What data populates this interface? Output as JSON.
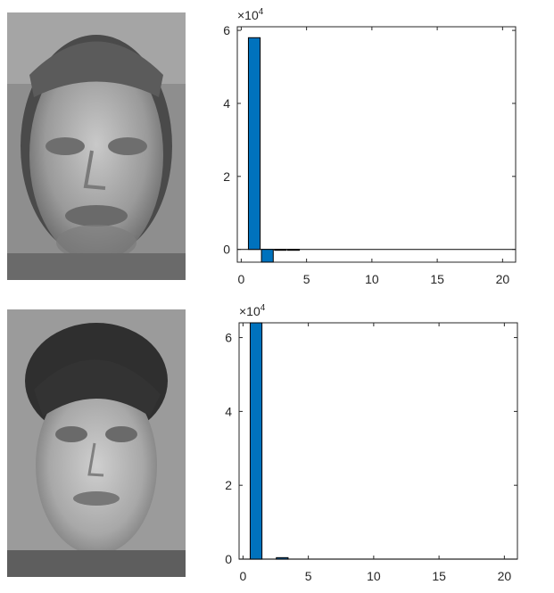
{
  "images": [
    {
      "name": "face-image-1",
      "description_icon": "grayscale-face-photo"
    },
    {
      "name": "face-image-2",
      "description_icon": "grayscale-face-photo"
    }
  ],
  "colors": {
    "bar": "#0072BD",
    "axis": "#262626",
    "background": "#ffffff"
  },
  "chart_data": [
    {
      "type": "bar",
      "title": "",
      "xlabel": "",
      "ylabel": "",
      "exponent_label": {
        "base": "×10",
        "power": "4"
      },
      "xlim": [
        -0.3,
        21
      ],
      "ylim": [
        -0.35,
        6.1
      ],
      "xticks": [
        0,
        5,
        10,
        15,
        20
      ],
      "yticks": [
        0,
        2,
        4,
        6
      ],
      "bars": [
        {
          "x": 1,
          "value": 5.8
        },
        {
          "x": 2,
          "value": -0.35
        },
        {
          "x": 3,
          "value": -0.02
        },
        {
          "x": 4,
          "value": -0.02
        }
      ],
      "grid": false
    },
    {
      "type": "bar",
      "title": "",
      "xlabel": "",
      "ylabel": "",
      "exponent_label": {
        "base": "×10",
        "power": "4"
      },
      "xlim": [
        -0.3,
        21
      ],
      "ylim": [
        0,
        6.4
      ],
      "xticks": [
        0,
        5,
        10,
        15,
        20
      ],
      "yticks": [
        0,
        2,
        4,
        6
      ],
      "bars": [
        {
          "x": 1,
          "value": 6.45
        },
        {
          "x": 3,
          "value": 0.04
        }
      ],
      "grid": false
    }
  ]
}
